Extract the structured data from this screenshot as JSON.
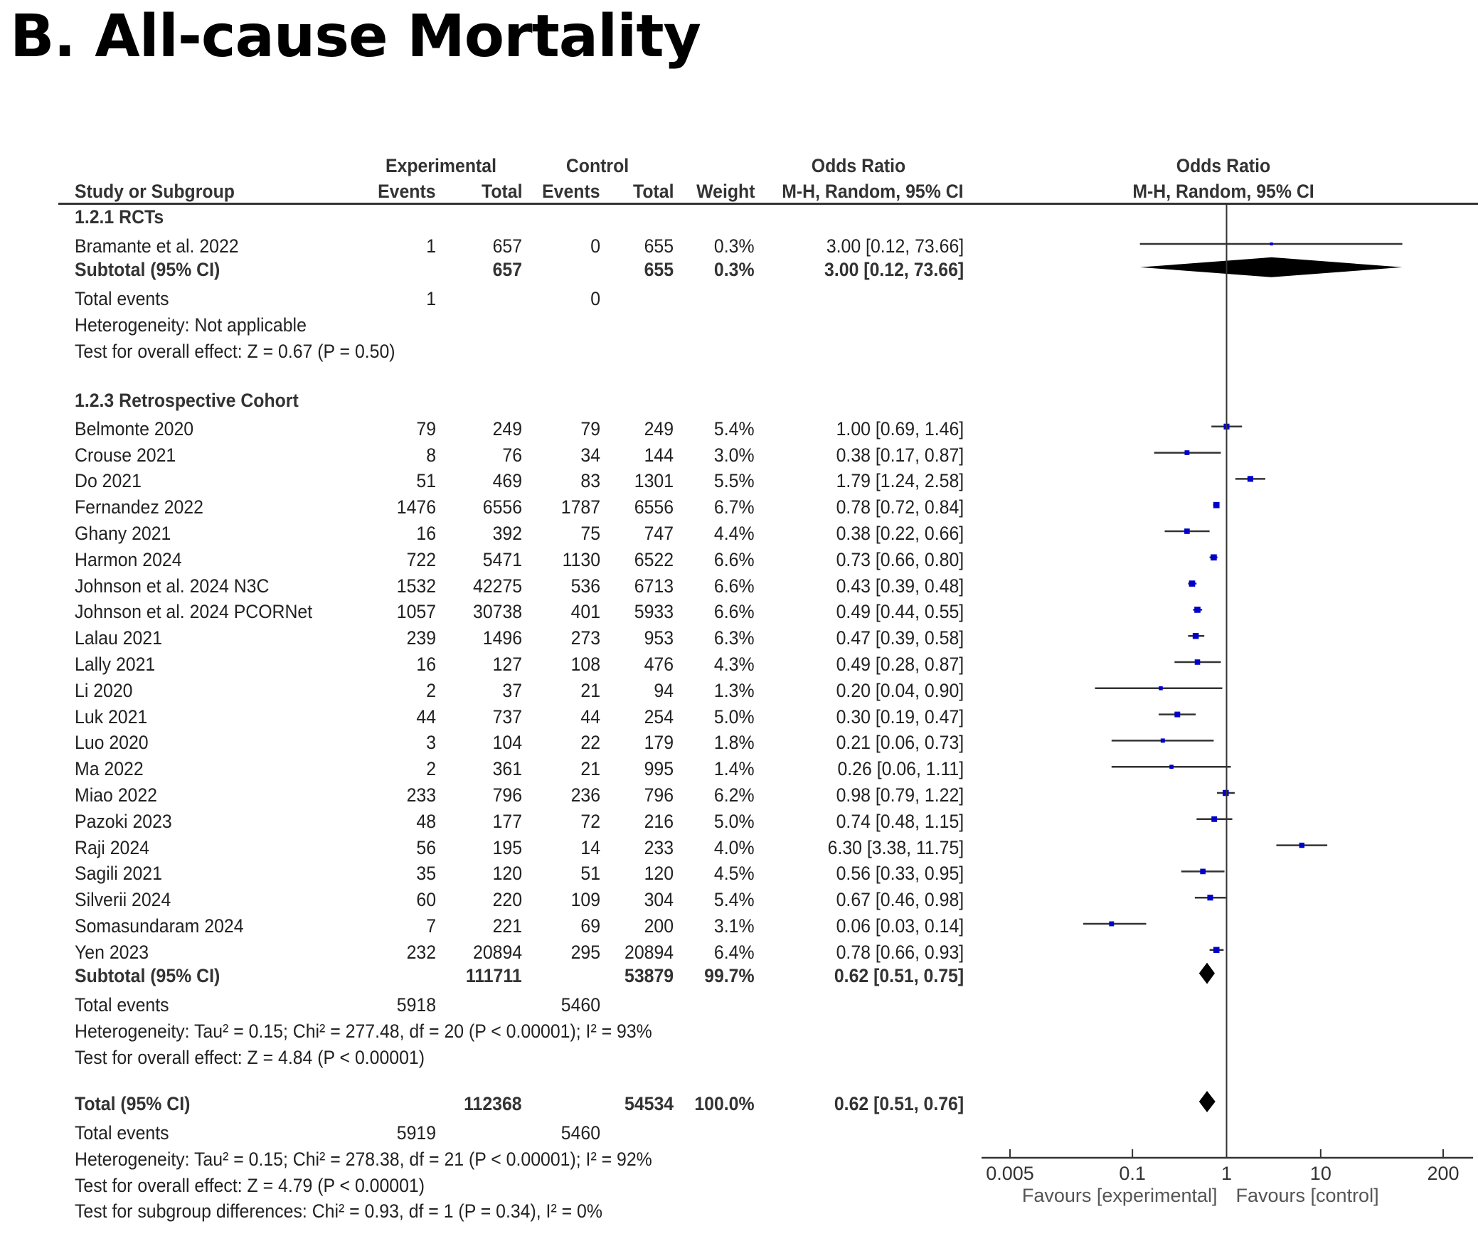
{
  "title": "B. All-cause Mortality",
  "header": {
    "experimental": "Experimental",
    "control": "Control",
    "or_group": "Odds Ratio",
    "plot_group": "Odds Ratio",
    "study": "Study or Subgroup",
    "exp_events": "Events",
    "exp_total": "Total",
    "ctl_events": "Events",
    "ctl_total": "Total",
    "weight": "Weight",
    "or_method": "M-H, Random, 95% CI",
    "plot_method": "M-H, Random, 95% CI"
  },
  "subgroups": [
    {
      "label": "1.2.1 RCTs",
      "studies": [
        {
          "name": "Bramante et al. 2022",
          "exp_events": "1",
          "exp_total": "657",
          "ctl_events": "0",
          "ctl_total": "655",
          "weight": "0.3%",
          "or_text": "3.00 [0.12, 73.66]",
          "or": 3.0,
          "lo": 0.12,
          "hi": 73.66,
          "w": 0.3
        }
      ],
      "subtotal": {
        "label": "Subtotal (95% CI)",
        "exp_total": "657",
        "ctl_total": "655",
        "weight": "0.3%",
        "or_text": "3.00 [0.12, 73.66]",
        "or": 3.0,
        "lo": 0.12,
        "hi": 73.66
      },
      "total_events": {
        "label": "Total events",
        "exp": "1",
        "ctl": "0"
      },
      "heterogeneity": "Heterogeneity: Not applicable",
      "overall_effect": "Test for overall effect: Z = 0.67 (P = 0.50)"
    },
    {
      "label": "1.2.3 Retrospective Cohort",
      "studies": [
        {
          "name": "Belmonte 2020",
          "exp_events": "79",
          "exp_total": "249",
          "ctl_events": "79",
          "ctl_total": "249",
          "weight": "5.4%",
          "or_text": "1.00 [0.69, 1.46]",
          "or": 1.0,
          "lo": 0.69,
          "hi": 1.46,
          "w": 5.4
        },
        {
          "name": "Crouse 2021",
          "exp_events": "8",
          "exp_total": "76",
          "ctl_events": "34",
          "ctl_total": "144",
          "weight": "3.0%",
          "or_text": "0.38 [0.17, 0.87]",
          "or": 0.38,
          "lo": 0.17,
          "hi": 0.87,
          "w": 3.0
        },
        {
          "name": "Do 2021",
          "exp_events": "51",
          "exp_total": "469",
          "ctl_events": "83",
          "ctl_total": "1301",
          "weight": "5.5%",
          "or_text": "1.79 [1.24, 2.58]",
          "or": 1.79,
          "lo": 1.24,
          "hi": 2.58,
          "w": 5.5
        },
        {
          "name": "Fernandez 2022",
          "exp_events": "1476",
          "exp_total": "6556",
          "ctl_events": "1787",
          "ctl_total": "6556",
          "weight": "6.7%",
          "or_text": "0.78 [0.72, 0.84]",
          "or": 0.78,
          "lo": 0.72,
          "hi": 0.84,
          "w": 6.7
        },
        {
          "name": "Ghany 2021",
          "exp_events": "16",
          "exp_total": "392",
          "ctl_events": "75",
          "ctl_total": "747",
          "weight": "4.4%",
          "or_text": "0.38 [0.22, 0.66]",
          "or": 0.38,
          "lo": 0.22,
          "hi": 0.66,
          "w": 4.4
        },
        {
          "name": "Harmon 2024",
          "exp_events": "722",
          "exp_total": "5471",
          "ctl_events": "1130",
          "ctl_total": "6522",
          "weight": "6.6%",
          "or_text": "0.73 [0.66, 0.80]",
          "or": 0.73,
          "lo": 0.66,
          "hi": 0.8,
          "w": 6.6
        },
        {
          "name": "Johnson et al. 2024 N3C",
          "exp_events": "1532",
          "exp_total": "42275",
          "ctl_events": "536",
          "ctl_total": "6713",
          "weight": "6.6%",
          "or_text": "0.43 [0.39, 0.48]",
          "or": 0.43,
          "lo": 0.39,
          "hi": 0.48,
          "w": 6.6
        },
        {
          "name": "Johnson et al. 2024 PCORNet",
          "exp_events": "1057",
          "exp_total": "30738",
          "ctl_events": "401",
          "ctl_total": "5933",
          "weight": "6.6%",
          "or_text": "0.49 [0.44, 0.55]",
          "or": 0.49,
          "lo": 0.44,
          "hi": 0.55,
          "w": 6.6
        },
        {
          "name": "Lalau 2021",
          "exp_events": "239",
          "exp_total": "1496",
          "ctl_events": "273",
          "ctl_total": "953",
          "weight": "6.3%",
          "or_text": "0.47 [0.39, 0.58]",
          "or": 0.47,
          "lo": 0.39,
          "hi": 0.58,
          "w": 6.3
        },
        {
          "name": "Lally 2021",
          "exp_events": "16",
          "exp_total": "127",
          "ctl_events": "108",
          "ctl_total": "476",
          "weight": "4.3%",
          "or_text": "0.49 [0.28, 0.87]",
          "or": 0.49,
          "lo": 0.28,
          "hi": 0.87,
          "w": 4.3
        },
        {
          "name": "Li 2020",
          "exp_events": "2",
          "exp_total": "37",
          "ctl_events": "21",
          "ctl_total": "94",
          "weight": "1.3%",
          "or_text": "0.20 [0.04, 0.90]",
          "or": 0.2,
          "lo": 0.04,
          "hi": 0.9,
          "w": 1.3
        },
        {
          "name": "Luk 2021",
          "exp_events": "44",
          "exp_total": "737",
          "ctl_events": "44",
          "ctl_total": "254",
          "weight": "5.0%",
          "or_text": "0.30 [0.19, 0.47]",
          "or": 0.3,
          "lo": 0.19,
          "hi": 0.47,
          "w": 5.0
        },
        {
          "name": "Luo 2020",
          "exp_events": "3",
          "exp_total": "104",
          "ctl_events": "22",
          "ctl_total": "179",
          "weight": "1.8%",
          "or_text": "0.21 [0.06, 0.73]",
          "or": 0.21,
          "lo": 0.06,
          "hi": 0.73,
          "w": 1.8
        },
        {
          "name": "Ma 2022",
          "exp_events": "2",
          "exp_total": "361",
          "ctl_events": "21",
          "ctl_total": "995",
          "weight": "1.4%",
          "or_text": "0.26 [0.06, 1.11]",
          "or": 0.26,
          "lo": 0.06,
          "hi": 1.11,
          "w": 1.4
        },
        {
          "name": "Miao 2022",
          "exp_events": "233",
          "exp_total": "796",
          "ctl_events": "236",
          "ctl_total": "796",
          "weight": "6.2%",
          "or_text": "0.98 [0.79, 1.22]",
          "or": 0.98,
          "lo": 0.79,
          "hi": 1.22,
          "w": 6.2
        },
        {
          "name": "Pazoki 2023",
          "exp_events": "48",
          "exp_total": "177",
          "ctl_events": "72",
          "ctl_total": "216",
          "weight": "5.0%",
          "or_text": "0.74 [0.48, 1.15]",
          "or": 0.74,
          "lo": 0.48,
          "hi": 1.15,
          "w": 5.0
        },
        {
          "name": "Raji 2024",
          "exp_events": "56",
          "exp_total": "195",
          "ctl_events": "14",
          "ctl_total": "233",
          "weight": "4.0%",
          "or_text": "6.30 [3.38, 11.75]",
          "or": 6.3,
          "lo": 3.38,
          "hi": 11.75,
          "w": 4.0
        },
        {
          "name": "Sagili 2021",
          "exp_events": "35",
          "exp_total": "120",
          "ctl_events": "51",
          "ctl_total": "120",
          "weight": "4.5%",
          "or_text": "0.56 [0.33, 0.95]",
          "or": 0.56,
          "lo": 0.33,
          "hi": 0.95,
          "w": 4.5
        },
        {
          "name": "Silverii 2024",
          "exp_events": "60",
          "exp_total": "220",
          "ctl_events": "109",
          "ctl_total": "304",
          "weight": "5.4%",
          "or_text": "0.67 [0.46, 0.98]",
          "or": 0.67,
          "lo": 0.46,
          "hi": 0.98,
          "w": 5.4
        },
        {
          "name": "Somasundaram 2024",
          "exp_events": "7",
          "exp_total": "221",
          "ctl_events": "69",
          "ctl_total": "200",
          "weight": "3.1%",
          "or_text": "0.06 [0.03, 0.14]",
          "or": 0.06,
          "lo": 0.03,
          "hi": 0.14,
          "w": 3.1
        },
        {
          "name": "Yen 2023",
          "exp_events": "232",
          "exp_total": "20894",
          "ctl_events": "295",
          "ctl_total": "20894",
          "weight": "6.4%",
          "or_text": "0.78 [0.66, 0.93]",
          "or": 0.78,
          "lo": 0.66,
          "hi": 0.93,
          "w": 6.4
        }
      ],
      "subtotal": {
        "label": "Subtotal (95% CI)",
        "exp_total": "111711",
        "ctl_total": "53879",
        "weight": "99.7%",
        "or_text": "0.62 [0.51, 0.75]",
        "or": 0.62,
        "lo": 0.51,
        "hi": 0.75
      },
      "total_events": {
        "label": "Total events",
        "exp": "5918",
        "ctl": "5460"
      },
      "heterogeneity": "Heterogeneity: Tau² = 0.15; Chi² = 277.48, df = 20 (P < 0.00001); I² = 93%",
      "overall_effect": "Test for overall effect: Z = 4.84 (P < 0.00001)"
    }
  ],
  "total": {
    "label": "Total (95% CI)",
    "exp_total": "112368",
    "ctl_total": "54534",
    "weight": "100.0%",
    "or_text": "0.62 [0.51, 0.76]",
    "or": 0.62,
    "lo": 0.51,
    "hi": 0.76
  },
  "total_events": {
    "label": "Total events",
    "exp": "5919",
    "ctl": "5460"
  },
  "total_heterogeneity": "Heterogeneity: Tau² = 0.15; Chi² = 278.38, df = 21 (P < 0.00001); I² = 92%",
  "total_overall_effect": "Test for overall effect: Z = 4.79 (P < 0.00001)",
  "subgroup_differences": "Test for subgroup differences: Chi² = 0.93, df = 1 (P = 0.34), I² = 0%",
  "colors": {
    "marker": "#0000cc",
    "diamond": "#000000",
    "line": "#333333"
  },
  "chart_data": {
    "type": "forest",
    "title": "B. All-cause Mortality",
    "xlabel_left": "Favours [experimental]",
    "xlabel_right": "Favours [control]",
    "xscale": "log",
    "xlim": [
      0.005,
      200
    ],
    "xticks": [
      0.005,
      0.1,
      1,
      10,
      200
    ],
    "xtick_labels": [
      "0.005",
      "0.1",
      "1",
      "10",
      "200"
    ],
    "reference_line": 1,
    "grid": false
  }
}
